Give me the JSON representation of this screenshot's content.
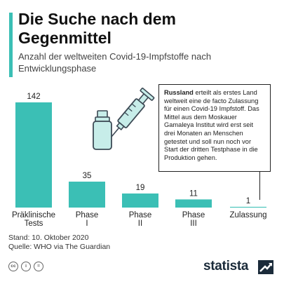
{
  "header": {
    "title": "Die Suche nach dem Gegenmittel",
    "subtitle": "Anzahl der weltweiten Covid-19-Impfstoffe nach Entwicklungsphase"
  },
  "callout": {
    "bold": "Russland",
    "text": " erteilt als erstes Land weltweit eine de facto Zulassung für einen Covid-19 Impfstoff. Das Mittel aus dem Moskauer Gamaleya Institut wird erst seit drei Monaten an Menschen getestet und soll nun noch vor Start der dritten Testphase in die Produktion gehen."
  },
  "footer": {
    "stand": "Stand: 10. Oktober 2020",
    "quelle": "Quelle: WHO via The Guardian"
  },
  "brand": {
    "name": "statista"
  },
  "icons": [
    "cc-icon",
    "person-icon",
    "equals-icon",
    "vaccine-vial-syringe-icon",
    "statista-logo-icon"
  ],
  "colors": {
    "accent": "#3bbfb5",
    "brand": "#1b2b3a"
  },
  "chart_data": {
    "type": "bar",
    "categories": [
      "Präklinische Tests",
      "Phase I",
      "Phase II",
      "Phase III",
      "Zulassung"
    ],
    "values": [
      142,
      35,
      19,
      11,
      1
    ],
    "title": "Die Suche nach dem Gegenmittel",
    "subtitle": "Anzahl der weltweiten Covid-19-Impfstoffe nach Entwicklungsphase",
    "xlabel": "",
    "ylabel": "",
    "ylim": [
      0,
      142
    ],
    "grid": false,
    "legend": "none"
  }
}
